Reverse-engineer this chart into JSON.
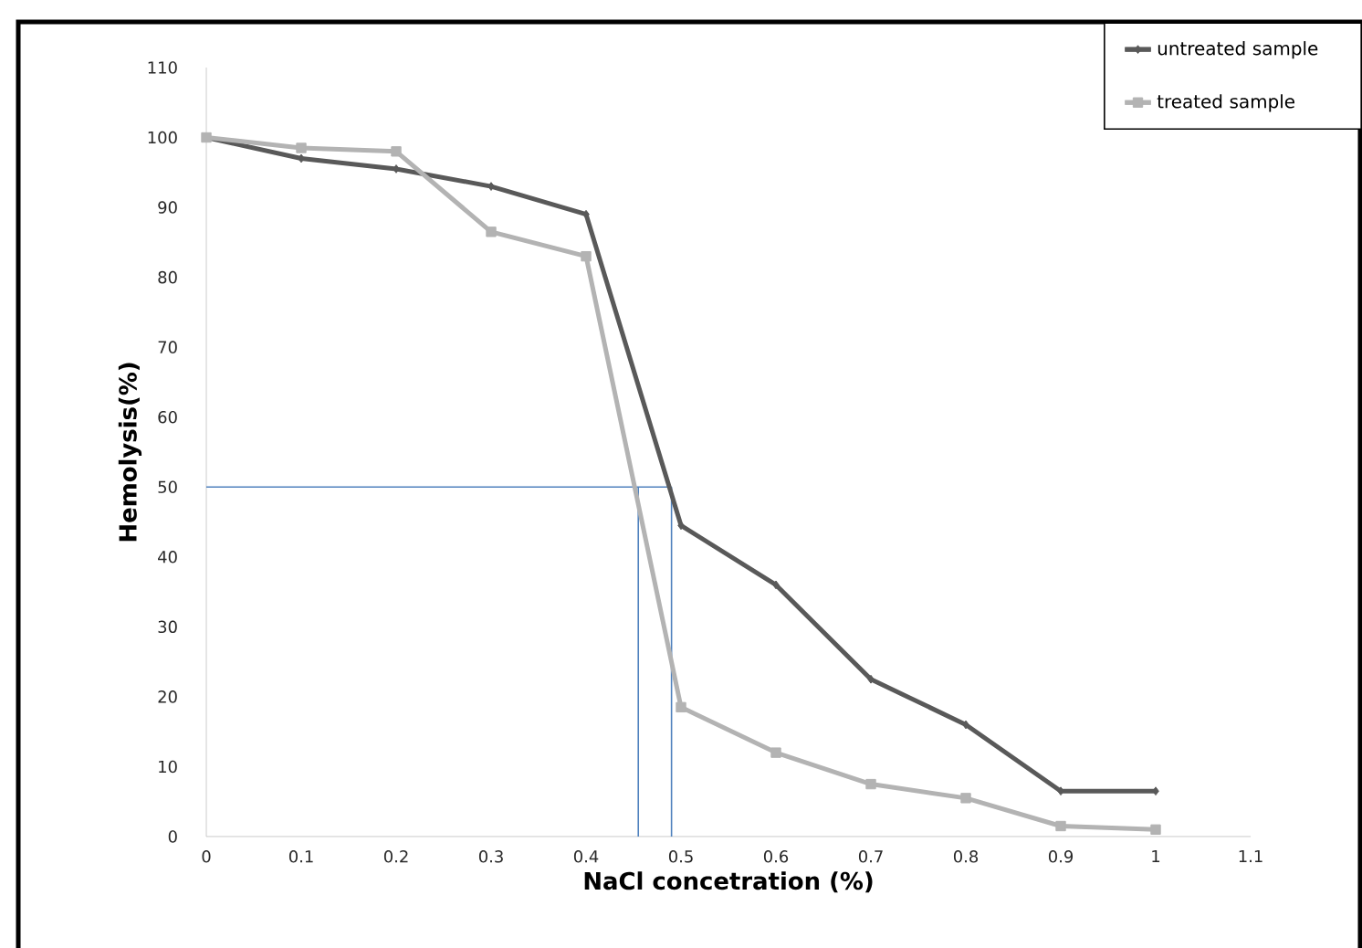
{
  "chart_data": {
    "type": "line",
    "xlabel": "NaCl concetration (%)",
    "ylabel": "Hemolysis(%)",
    "x": [
      0,
      0.1,
      0.2,
      0.3,
      0.4,
      0.5,
      0.6,
      0.7,
      0.8,
      0.9,
      1
    ],
    "series": [
      {
        "name": "untreated sample",
        "color": "#595959",
        "marker": "diamond",
        "values": [
          100,
          97,
          95.5,
          93,
          89,
          44.5,
          36,
          22.5,
          16,
          6.5,
          6.5
        ]
      },
      {
        "name": "treated sample",
        "color": "#b3b3b3",
        "marker": "square",
        "values": [
          100,
          98.5,
          98,
          86.5,
          83,
          18.5,
          12,
          7.5,
          5.5,
          1.5,
          1
        ]
      }
    ],
    "xlim": [
      0,
      1.1
    ],
    "xticks": [
      0,
      0.1,
      0.2,
      0.3,
      0.4,
      0.5,
      0.6,
      0.7,
      0.8,
      0.9,
      1,
      1.1
    ],
    "ylim": [
      0,
      110
    ],
    "yticks": [
      0,
      10,
      20,
      30,
      40,
      50,
      60,
      70,
      80,
      90,
      100,
      110
    ],
    "ref_lines": [
      {
        "axis": "y",
        "value": 50,
        "color": "#4f81bd"
      },
      {
        "axis": "x",
        "value": 0.455,
        "color": "#4f81bd"
      },
      {
        "axis": "x",
        "value": 0.49,
        "color": "#4f81bd"
      }
    ],
    "grid": false,
    "legend": "top right",
    "line_style": "solid"
  }
}
